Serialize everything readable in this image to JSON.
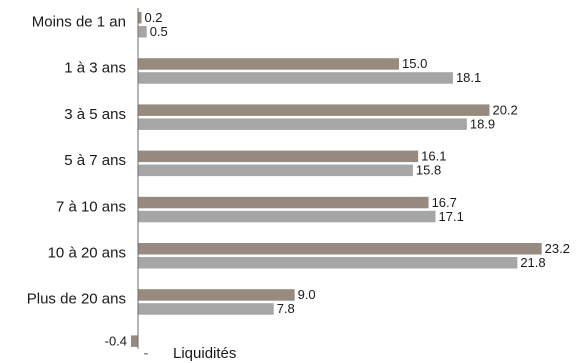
{
  "chart_data": {
    "type": "bar",
    "orientation": "horizontal",
    "categories": [
      "Moins de 1 an",
      "1 à 3 ans",
      "3 à 5 ans",
      "5 à 7 ans",
      "7 à 10 ans",
      "10 à 20 ans",
      "Plus de 20 ans"
    ],
    "series": [
      {
        "values": [
          0.2,
          15.0,
          20.2,
          16.1,
          16.7,
          23.2,
          9.0
        ],
        "color": "#978a7f"
      },
      {
        "values": [
          0.5,
          18.1,
          18.9,
          15.8,
          17.1,
          21.8,
          7.8
        ],
        "color": "#a6a6a6"
      }
    ],
    "value_labels": [
      [
        "0.2",
        "15.0",
        "20.2",
        "16.1",
        "16.7",
        "23.2",
        "9.0"
      ],
      [
        "0.5",
        "18.1",
        "18.9",
        "15.8",
        "17.1",
        "21.8",
        "7.8"
      ]
    ],
    "extra_bar": {
      "value": -0.4,
      "label": "-0.4",
      "color": "#978a7f"
    },
    "legend": {
      "position": "bottom-left",
      "entries": [
        {
          "label": "Liquidités",
          "color": "#978a7f"
        }
      ]
    },
    "xlim": [
      -0.4,
      23.2
    ],
    "grid": false,
    "title": "",
    "xlabel": "",
    "ylabel": ""
  }
}
